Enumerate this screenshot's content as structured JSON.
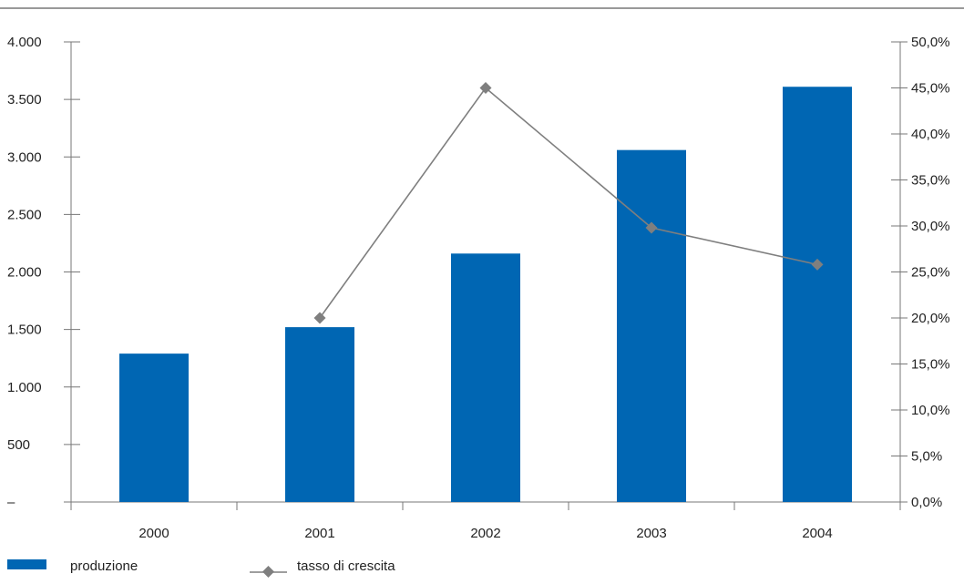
{
  "chart_data": {
    "type": "bar",
    "categories": [
      "2000",
      "2001",
      "2002",
      "2003",
      "2004"
    ],
    "series": [
      {
        "name": "produzione",
        "type": "bar",
        "axis": "left",
        "color": "#0066b3",
        "values": [
          1290,
          1520,
          2160,
          3060,
          3610
        ]
      },
      {
        "name": "tasso di crescita",
        "type": "line",
        "axis": "right",
        "color": "#7f7f7f",
        "marker": "diamond",
        "values": [
          null,
          20.0,
          45.0,
          29.8,
          25.8
        ]
      }
    ],
    "y_left": {
      "ylim": [
        0,
        4000
      ],
      "ticks": [
        0,
        500,
        1000,
        1500,
        2000,
        2500,
        3000,
        3500,
        4000
      ],
      "tick_labels": [
        "–",
        "500",
        "1.000",
        "1.500",
        "2.000",
        "2.500",
        "3.000",
        "3.500",
        "4.000"
      ]
    },
    "y_right": {
      "ylim": [
        0,
        50
      ],
      "ticks": [
        0,
        5,
        10,
        15,
        20,
        25,
        30,
        35,
        40,
        45,
        50
      ],
      "tick_labels": [
        "0,0%",
        "5,0%",
        "10,0%",
        "15,0%",
        "20,0%",
        "25,0%",
        "30,0%",
        "35,0%",
        "40,0%",
        "45,0%",
        "50,0%"
      ]
    },
    "legend": {
      "position": "bottom-left",
      "items": [
        "produzione",
        "tasso di crescita"
      ]
    },
    "grid": false
  }
}
